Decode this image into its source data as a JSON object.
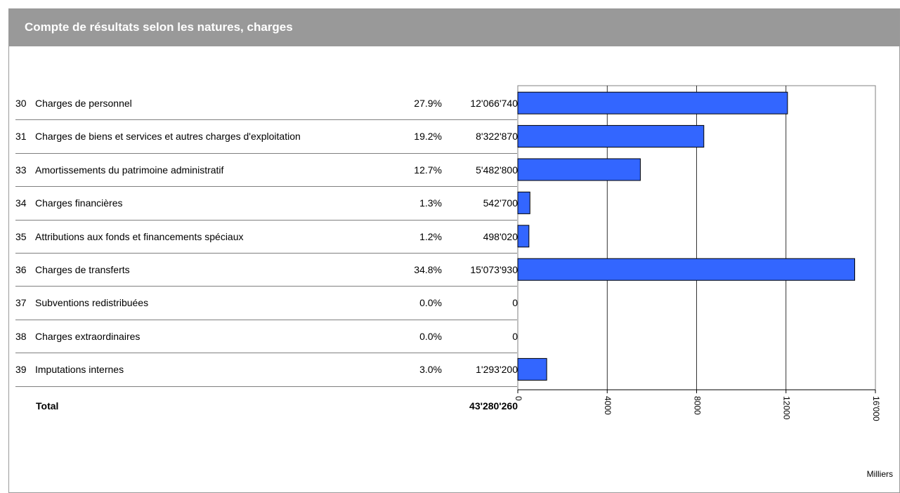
{
  "header": {
    "title": "Compte de résultats selon les natures, charges"
  },
  "rows": [
    {
      "code": "30",
      "label": "Charges de personnel",
      "pct": "27.9%",
      "amount": "12'066'740"
    },
    {
      "code": "31",
      "label": "Charges de biens et services et autres charges d'exploitation",
      "pct": "19.2%",
      "amount": "8'322'870"
    },
    {
      "code": "33",
      "label": "Amortissements du patrimoine administratif",
      "pct": "12.7%",
      "amount": "5'482'800"
    },
    {
      "code": "34",
      "label": "Charges financières",
      "pct": "1.3%",
      "amount": "542'700"
    },
    {
      "code": "35",
      "label": "Attributions aux fonds et financements spéciaux",
      "pct": "1.2%",
      "amount": "498'020"
    },
    {
      "code": "36",
      "label": "Charges de transferts",
      "pct": "34.8%",
      "amount": "15'073'930"
    },
    {
      "code": "37",
      "label": "Subventions redistribuées",
      "pct": "0.0%",
      "amount": "0"
    },
    {
      "code": "38",
      "label": "Charges extraordinaires",
      "pct": "0.0%",
      "amount": "0"
    },
    {
      "code": "39",
      "label": "Imputations internes",
      "pct": "3.0%",
      "amount": "1'293'200"
    }
  ],
  "total": {
    "label": "Total",
    "amount": "43'280'260"
  },
  "chart_data": {
    "type": "bar",
    "orientation": "horizontal",
    "categories": [
      "30",
      "31",
      "33",
      "34",
      "35",
      "36",
      "37",
      "38",
      "39"
    ],
    "values": [
      12066.74,
      8322.87,
      5482.8,
      542.7,
      498.02,
      15073.93,
      0,
      0,
      1293.2
    ],
    "xlim": [
      0,
      16000
    ],
    "x_ticks": [
      0,
      4000,
      8000,
      12000,
      16000
    ],
    "x_tick_labels": [
      "0",
      "4000",
      "8000",
      "12000",
      "16'000"
    ],
    "unit_label": "Milliers",
    "grid": true,
    "bar_color": "#3366ff"
  }
}
